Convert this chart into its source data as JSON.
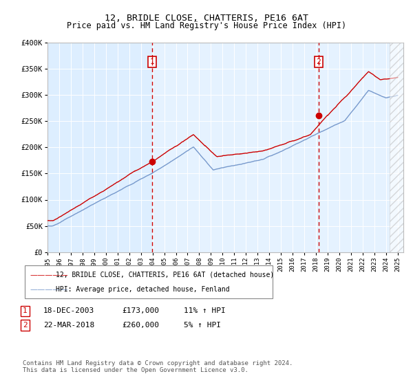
{
  "title": "12, BRIDLE CLOSE, CHATTERIS, PE16 6AT",
  "subtitle": "Price paid vs. HM Land Registry's House Price Index (HPI)",
  "ylim": [
    0,
    400000
  ],
  "yticks": [
    0,
    50000,
    100000,
    150000,
    200000,
    250000,
    300000,
    350000,
    400000
  ],
  "ytick_labels": [
    "£0",
    "£50K",
    "£100K",
    "£150K",
    "£200K",
    "£250K",
    "£300K",
    "£350K",
    "£400K"
  ],
  "xlim_start": 1995.0,
  "xlim_end": 2025.5,
  "bg_color": "#ddeeff",
  "sale1_date": 2003.97,
  "sale1_price": 173000,
  "sale2_date": 2018.22,
  "sale2_price": 260000,
  "legend_line1": "12, BRIDLE CLOSE, CHATTERIS, PE16 6AT (detached house)",
  "legend_line2": "HPI: Average price, detached house, Fenland",
  "table_row1": [
    "1",
    "18-DEC-2003",
    "£173,000",
    "11% ↑ HPI"
  ],
  "table_row2": [
    "2",
    "22-MAR-2018",
    "£260,000",
    "5% ↑ HPI"
  ],
  "footer": "Contains HM Land Registry data © Crown copyright and database right 2024.\nThis data is licensed under the Open Government Licence v3.0.",
  "red_color": "#cc0000",
  "blue_color": "#7799cc",
  "hatch_start": 2024.33
}
